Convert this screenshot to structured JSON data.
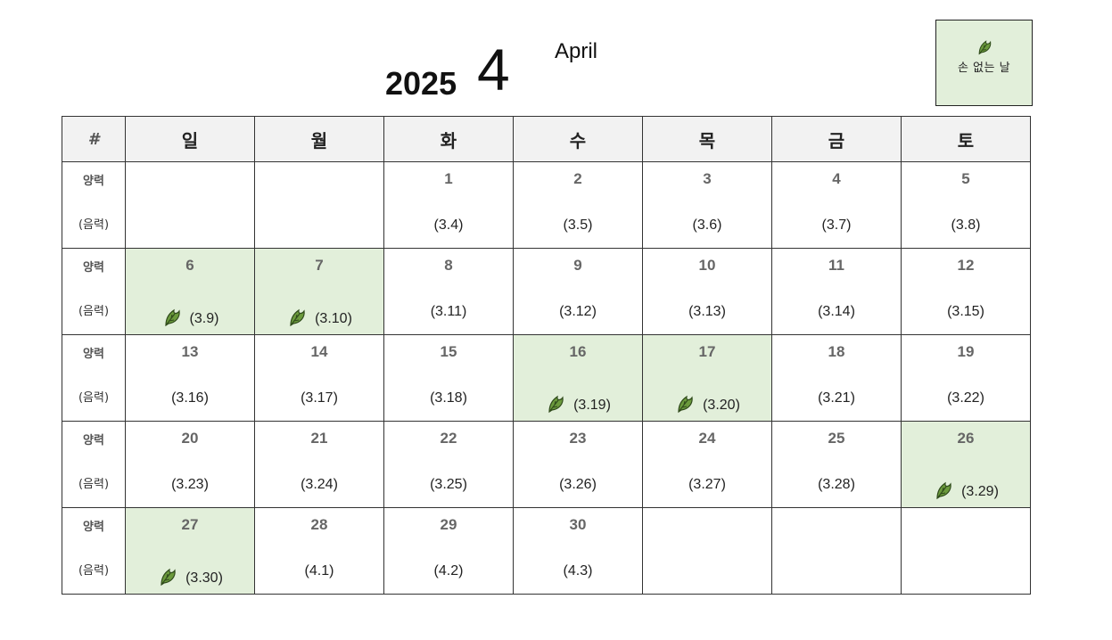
{
  "header": {
    "year": "2025",
    "month": "4",
    "month_en": "April"
  },
  "legend": {
    "icon": "leaf-icon",
    "label": "손 없는 날",
    "color": "#e2efda"
  },
  "table": {
    "headers": [
      "#",
      "일",
      "월",
      "화",
      "수",
      "목",
      "금",
      "토"
    ],
    "row_label_solar": "양력",
    "row_label_lunar": "(음력)",
    "weeks": [
      [
        {
          "day": "",
          "lunar": "",
          "hl": false
        },
        {
          "day": "",
          "lunar": "",
          "hl": false
        },
        {
          "day": "1",
          "lunar": "(3.4)",
          "hl": false
        },
        {
          "day": "2",
          "lunar": "(3.5)",
          "hl": false
        },
        {
          "day": "3",
          "lunar": "(3.6)",
          "hl": false
        },
        {
          "day": "4",
          "lunar": "(3.7)",
          "hl": false
        },
        {
          "day": "5",
          "lunar": "(3.8)",
          "hl": false
        }
      ],
      [
        {
          "day": "6",
          "lunar": "(3.9)",
          "hl": true
        },
        {
          "day": "7",
          "lunar": "(3.10)",
          "hl": true
        },
        {
          "day": "8",
          "lunar": "(3.11)",
          "hl": false
        },
        {
          "day": "9",
          "lunar": "(3.12)",
          "hl": false
        },
        {
          "day": "10",
          "lunar": "(3.13)",
          "hl": false
        },
        {
          "day": "11",
          "lunar": "(3.14)",
          "hl": false
        },
        {
          "day": "12",
          "lunar": "(3.15)",
          "hl": false
        }
      ],
      [
        {
          "day": "13",
          "lunar": "(3.16)",
          "hl": false
        },
        {
          "day": "14",
          "lunar": "(3.17)",
          "hl": false
        },
        {
          "day": "15",
          "lunar": "(3.18)",
          "hl": false
        },
        {
          "day": "16",
          "lunar": "(3.19)",
          "hl": true
        },
        {
          "day": "17",
          "lunar": "(3.20)",
          "hl": true
        },
        {
          "day": "18",
          "lunar": "(3.21)",
          "hl": false
        },
        {
          "day": "19",
          "lunar": "(3.22)",
          "hl": false
        }
      ],
      [
        {
          "day": "20",
          "lunar": "(3.23)",
          "hl": false
        },
        {
          "day": "21",
          "lunar": "(3.24)",
          "hl": false
        },
        {
          "day": "22",
          "lunar": "(3.25)",
          "hl": false
        },
        {
          "day": "23",
          "lunar": "(3.26)",
          "hl": false
        },
        {
          "day": "24",
          "lunar": "(3.27)",
          "hl": false
        },
        {
          "day": "25",
          "lunar": "(3.28)",
          "hl": false
        },
        {
          "day": "26",
          "lunar": "(3.29)",
          "hl": true
        }
      ],
      [
        {
          "day": "27",
          "lunar": "(3.30)",
          "hl": true
        },
        {
          "day": "28",
          "lunar": "(4.1)",
          "hl": false
        },
        {
          "day": "29",
          "lunar": "(4.2)",
          "hl": false
        },
        {
          "day": "30",
          "lunar": "(4.3)",
          "hl": false
        },
        {
          "day": "",
          "lunar": "",
          "hl": false
        },
        {
          "day": "",
          "lunar": "",
          "hl": false
        },
        {
          "day": "",
          "lunar": "",
          "hl": false
        }
      ]
    ]
  }
}
